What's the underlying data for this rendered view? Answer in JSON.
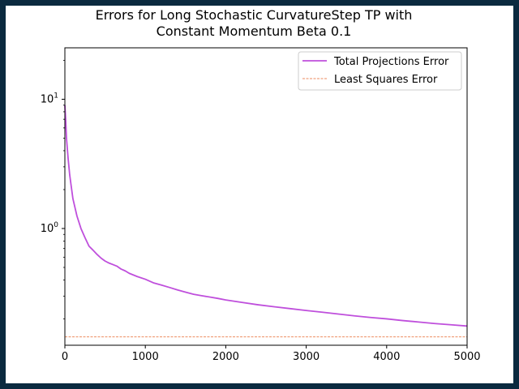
{
  "chart_data": {
    "type": "line",
    "title": [
      "Errors for Long Stochastic CurvatureStep TP with",
      "Constant Momentum Beta 0.1"
    ],
    "xlabel": "",
    "ylabel": "",
    "xlim": [
      0,
      5000
    ],
    "ylim": [
      0.125,
      25
    ],
    "yscale": "log",
    "grid": false,
    "legend_position": "top-right",
    "x_ticks": [
      0,
      1000,
      2000,
      3000,
      4000,
      5000
    ],
    "x_tick_labels": [
      "0",
      "1000",
      "2000",
      "3000",
      "4000",
      "5000"
    ],
    "y_major_ticks": [
      1,
      10
    ],
    "y_tick_labels": [
      "10^0",
      "10^1"
    ],
    "series": [
      {
        "name": "Total Projections Error",
        "color": "#bf4fdc",
        "style": "solid",
        "x": [
          0,
          10,
          20,
          40,
          60,
          80,
          100,
          150,
          200,
          250,
          300,
          350,
          400,
          450,
          500,
          550,
          600,
          650,
          700,
          750,
          800,
          900,
          1000,
          1100,
          1200,
          1300,
          1400,
          1500,
          1600,
          1700,
          1800,
          1900,
          2000,
          2200,
          2400,
          2600,
          2800,
          3000,
          3200,
          3400,
          3600,
          3800,
          4000,
          4200,
          4400,
          4600,
          4800,
          5000
        ],
        "y": [
          9.0,
          7.0,
          5.0,
          3.5,
          2.6,
          2.1,
          1.7,
          1.25,
          1.0,
          0.85,
          0.73,
          0.68,
          0.63,
          0.59,
          0.56,
          0.54,
          0.525,
          0.51,
          0.485,
          0.47,
          0.45,
          0.425,
          0.405,
          0.38,
          0.365,
          0.35,
          0.335,
          0.322,
          0.31,
          0.302,
          0.295,
          0.288,
          0.28,
          0.268,
          0.257,
          0.248,
          0.24,
          0.232,
          0.225,
          0.218,
          0.211,
          0.205,
          0.2,
          0.194,
          0.189,
          0.184,
          0.18,
          0.176
        ]
      },
      {
        "name": "Least Squares Error",
        "color": "#e8662b",
        "style": "dashed",
        "x": [
          0,
          5000
        ],
        "y": [
          0.145,
          0.145
        ]
      }
    ]
  }
}
